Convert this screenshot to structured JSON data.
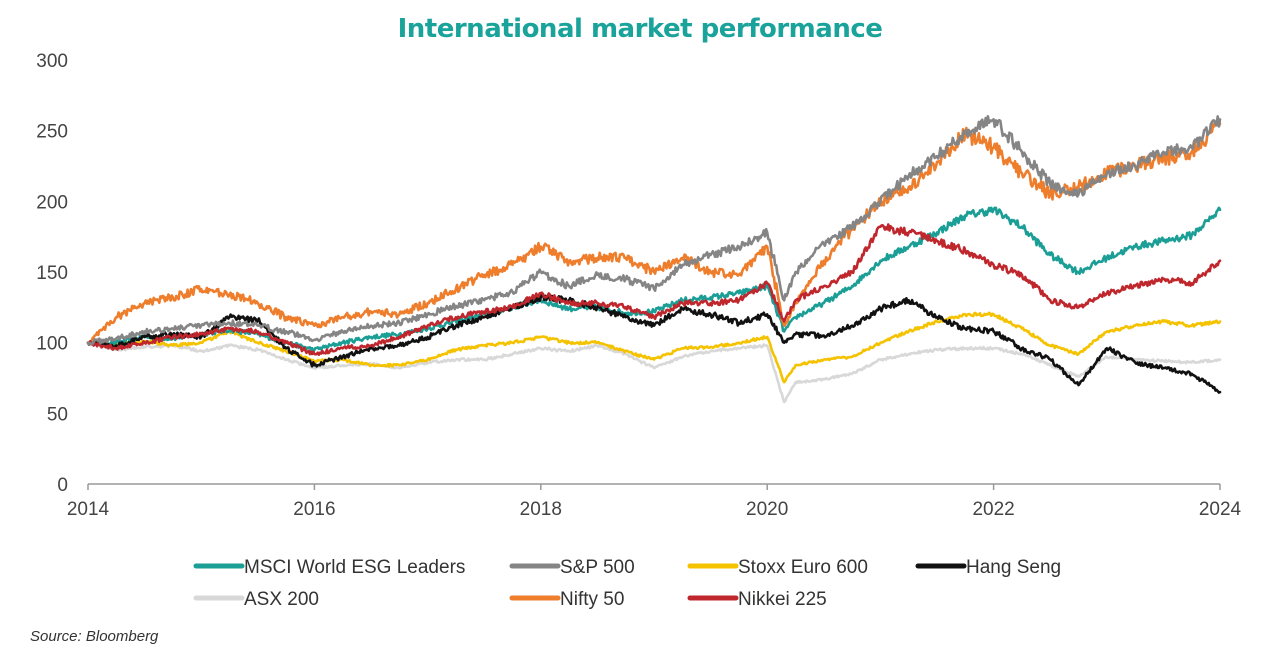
{
  "colors": {
    "title": "#1aa39a",
    "axis": "#999999",
    "tick_text": "#444444"
  },
  "source_text": "Source: Bloomberg",
  "chart_data": {
    "type": "line",
    "title": "International market performance",
    "xlabel": "",
    "ylabel": "",
    "xlim": [
      2014,
      2024
    ],
    "ylim": [
      0,
      300
    ],
    "x_ticks": [
      2014,
      2016,
      2018,
      2020,
      2022,
      2024
    ],
    "y_ticks": [
      0,
      50,
      100,
      150,
      200,
      250,
      300
    ],
    "grid": false,
    "legend_position": "bottom",
    "x": [
      2014.0,
      2014.25,
      2014.5,
      2014.75,
      2015.0,
      2015.25,
      2015.5,
      2015.75,
      2016.0,
      2016.25,
      2016.5,
      2016.75,
      2017.0,
      2017.25,
      2017.5,
      2017.75,
      2018.0,
      2018.25,
      2018.5,
      2018.75,
      2019.0,
      2019.25,
      2019.5,
      2019.75,
      2020.0,
      2020.15,
      2020.25,
      2020.5,
      2020.75,
      2021.0,
      2021.25,
      2021.5,
      2021.75,
      2022.0,
      2022.25,
      2022.5,
      2022.75,
      2023.0,
      2023.25,
      2023.5,
      2023.75,
      2024.0
    ],
    "series": [
      {
        "name": "MSCI World ESG Leaders",
        "color": "#1a9e96",
        "values": [
          100,
          100,
          104,
          103,
          106,
          109,
          106,
          100,
          95,
          100,
          104,
          106,
          110,
          115,
          120,
          125,
          130,
          124,
          125,
          121,
          122,
          130,
          132,
          135,
          140,
          108,
          118,
          128,
          140,
          158,
          168,
          178,
          190,
          194,
          182,
          162,
          150,
          160,
          168,
          172,
          176,
          194
        ]
      },
      {
        "name": "S&P 500",
        "color": "#858585",
        "values": [
          100,
          103,
          108,
          110,
          112,
          114,
          112,
          108,
          102,
          108,
          112,
          114,
          120,
          126,
          130,
          136,
          150,
          140,
          148,
          145,
          138,
          155,
          162,
          168,
          178,
          130,
          150,
          170,
          182,
          200,
          218,
          232,
          248,
          258,
          235,
          212,
          205,
          220,
          225,
          235,
          238,
          258
        ]
      },
      {
        "name": "Stoxx Euro 600",
        "color": "#f5c200",
        "values": [
          100,
          99,
          101,
          98,
          100,
          108,
          100,
          94,
          87,
          88,
          84,
          84,
          88,
          95,
          98,
          100,
          104,
          100,
          100,
          94,
          88,
          96,
          97,
          100,
          104,
          72,
          84,
          88,
          90,
          100,
          108,
          115,
          120,
          120,
          110,
          98,
          92,
          108,
          112,
          115,
          112,
          115
        ]
      },
      {
        "name": "Hang Seng",
        "color": "#111111",
        "values": [
          100,
          98,
          104,
          106,
          104,
          118,
          116,
          96,
          84,
          90,
          96,
          98,
          104,
          112,
          118,
          125,
          132,
          130,
          125,
          118,
          112,
          124,
          120,
          114,
          120,
          100,
          106,
          105,
          112,
          124,
          130,
          118,
          110,
          108,
          96,
          88,
          70,
          96,
          86,
          82,
          78,
          65
        ]
      },
      {
        "name": "ASX 200",
        "color": "#d8d8d8",
        "values": [
          100,
          95,
          97,
          98,
          94,
          98,
          95,
          88,
          82,
          84,
          85,
          82,
          86,
          88,
          88,
          92,
          96,
          94,
          98,
          92,
          82,
          90,
          94,
          96,
          98,
          58,
          72,
          74,
          78,
          88,
          92,
          95,
          96,
          96,
          92,
          84,
          76,
          90,
          88,
          87,
          86,
          88
        ]
      },
      {
        "name": "Nifty 50",
        "color": "#ee7d2c",
        "values": [
          100,
          118,
          128,
          132,
          138,
          134,
          128,
          118,
          112,
          118,
          122,
          120,
          128,
          138,
          148,
          155,
          168,
          158,
          160,
          160,
          150,
          160,
          150,
          148,
          168,
          112,
          128,
          158,
          180,
          200,
          210,
          228,
          248,
          238,
          220,
          205,
          210,
          220,
          225,
          230,
          235,
          255
        ]
      },
      {
        "name": "Nikkei 225",
        "color": "#c0272d",
        "values": [
          100,
          96,
          100,
          104,
          106,
          110,
          108,
          100,
          92,
          96,
          98,
          104,
          112,
          118,
          122,
          125,
          135,
          128,
          128,
          125,
          118,
          128,
          128,
          130,
          142,
          115,
          130,
          140,
          150,
          182,
          178,
          172,
          165,
          155,
          148,
          130,
          125,
          135,
          140,
          145,
          142,
          158
        ]
      }
    ]
  }
}
